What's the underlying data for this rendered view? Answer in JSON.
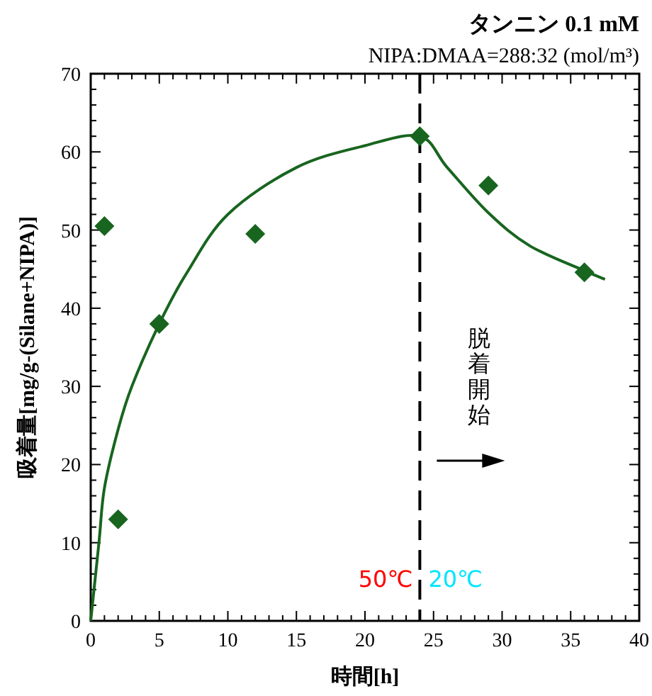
{
  "chart_data": {
    "type": "scatter",
    "title": "タンニン 0.1 mM",
    "subtitle": "NIPA:DMAA=288:32 (mol/m³)",
    "xlabel": "時間[h]",
    "ylabel": "吸着量[mg/g-(Silane+NIPA)]",
    "series": [
      {
        "marker": "diamond",
        "color": "#18651f",
        "x": [
          1,
          2,
          5,
          12,
          24,
          29,
          36
        ],
        "values": [
          50.5,
          13,
          38,
          49.5,
          62,
          55.7,
          44.6
        ]
      },
      {
        "type": "line",
        "marker": "none",
        "line_style": "solid",
        "color": "#18651f",
        "x": [
          0,
          0.6,
          1,
          2,
          3,
          5,
          7,
          10,
          15,
          20,
          24,
          26,
          29,
          32,
          36,
          37.5
        ],
        "values": [
          0,
          10,
          17,
          24.5,
          30,
          38,
          44.5,
          52,
          58,
          60.8,
          62,
          58,
          52.2,
          48,
          44.8,
          43.7
        ]
      }
    ],
    "xlim": [
      0,
      40
    ],
    "ylim": [
      0,
      70
    ],
    "xticks": [
      0,
      5,
      10,
      15,
      20,
      25,
      30,
      35,
      40
    ],
    "yticks": [
      0,
      10,
      20,
      30,
      40,
      50,
      60,
      70
    ],
    "grid": false,
    "ref_lines": [
      {
        "axis": "x",
        "value": 24,
        "color": "#000000",
        "line_style": "dashed"
      }
    ],
    "annotations": [
      "50℃",
      "20℃",
      "脱着開始"
    ]
  }
}
